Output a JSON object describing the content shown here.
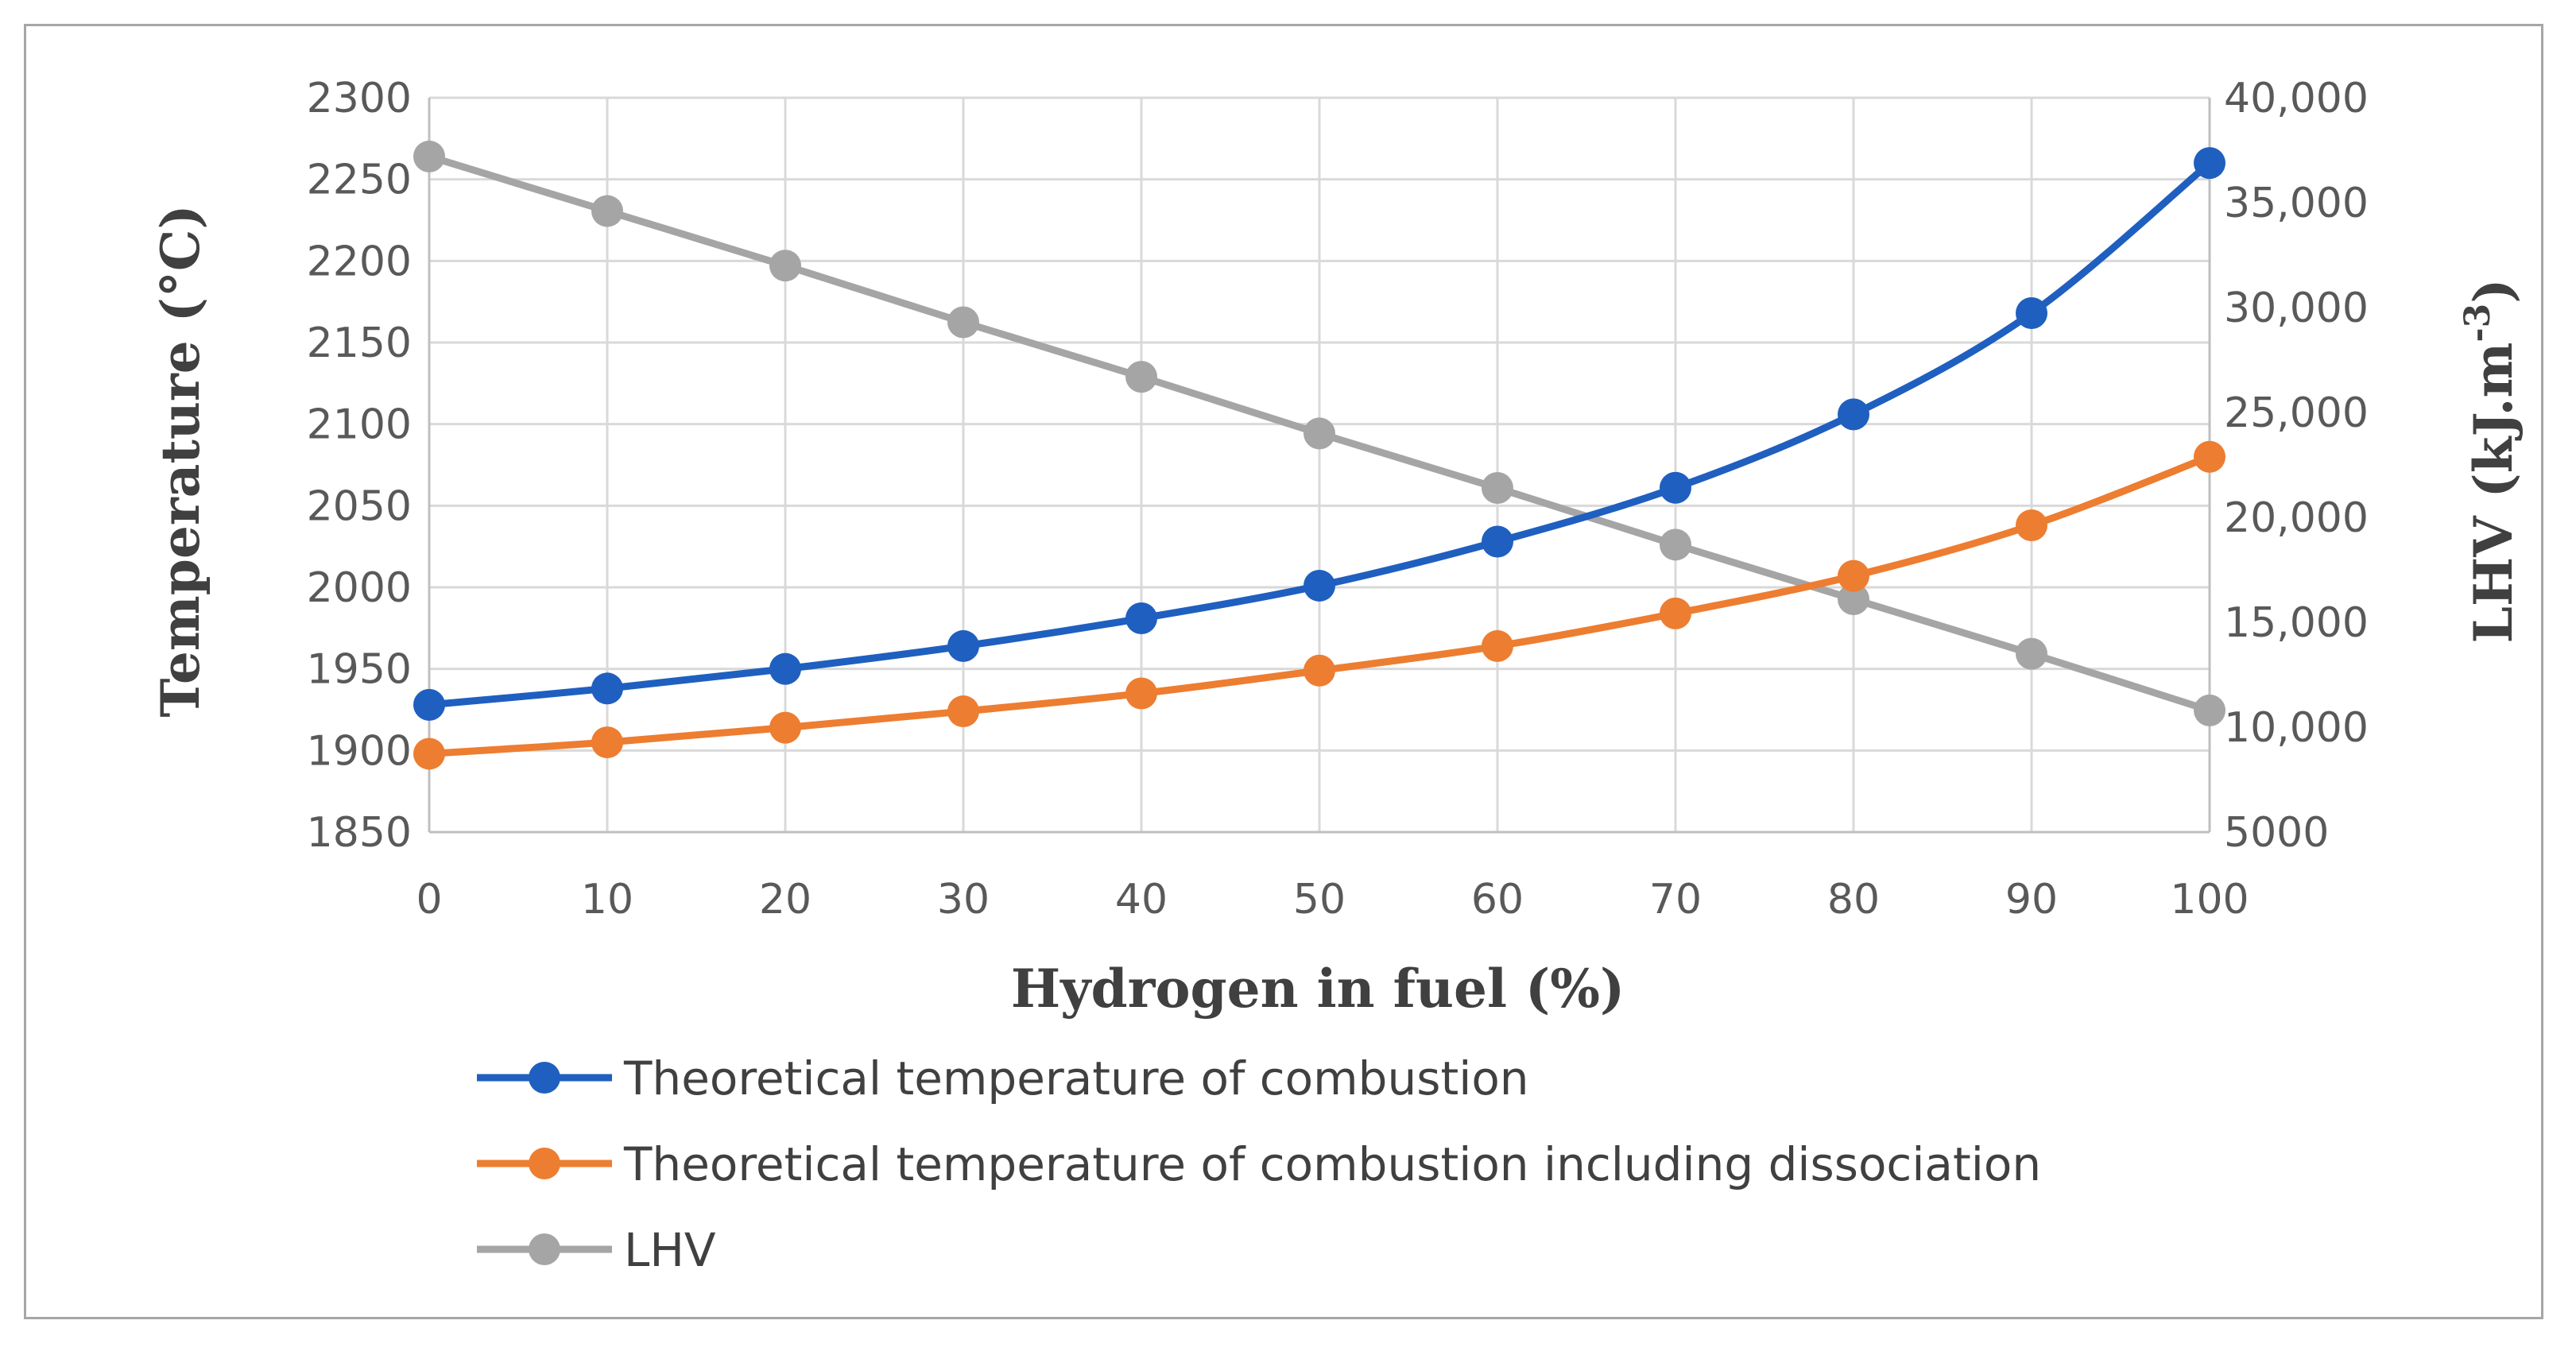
{
  "chart_data": {
    "type": "line",
    "x": [
      0,
      10,
      20,
      30,
      40,
      50,
      60,
      70,
      80,
      90,
      100
    ],
    "xlabel": "Hydrogen in fuel (%)",
    "ylabel": "Temperature (°C)",
    "y2label_base": "LHV (kJ.m",
    "y2label_sup": "-3",
    "y2label_close": ")",
    "ylim": [
      1850,
      2300
    ],
    "y2lim": [
      5000,
      40000
    ],
    "x_ticks": [
      "0",
      "10",
      "20",
      "30",
      "40",
      "50",
      "60",
      "70",
      "80",
      "90",
      "100"
    ],
    "y_ticks": [
      "1850",
      "1900",
      "1950",
      "2000",
      "2050",
      "2100",
      "2150",
      "2200",
      "2250",
      "2300"
    ],
    "y2_ticks": [
      "5000",
      "10,000",
      "15,000",
      "20,000",
      "25,000",
      "30,000",
      "35,000",
      "40,000"
    ],
    "grid": true,
    "legend_position": "bottom",
    "series": [
      {
        "name": "Theoretical temperature of combustion",
        "axis": "left",
        "color": "#1f5fbf",
        "values": [
          1928,
          1938,
          1950,
          1964,
          1981,
          2001,
          2028,
          2061,
          2106,
          2168,
          2260
        ]
      },
      {
        "name": "Theoretical temperature of combustion including dissociation",
        "axis": "left",
        "color": "#ed7d31",
        "values": [
          1898,
          1905,
          1914,
          1924,
          1935,
          1949,
          1964,
          1984,
          2007,
          2038,
          2080
        ]
      },
      {
        "name": "LHV",
        "axis": "right",
        "color": "#a5a5a5",
        "values": [
          37200,
          34600,
          32000,
          29300,
          26700,
          24000,
          21400,
          18700,
          16100,
          13500,
          10800
        ]
      }
    ]
  }
}
